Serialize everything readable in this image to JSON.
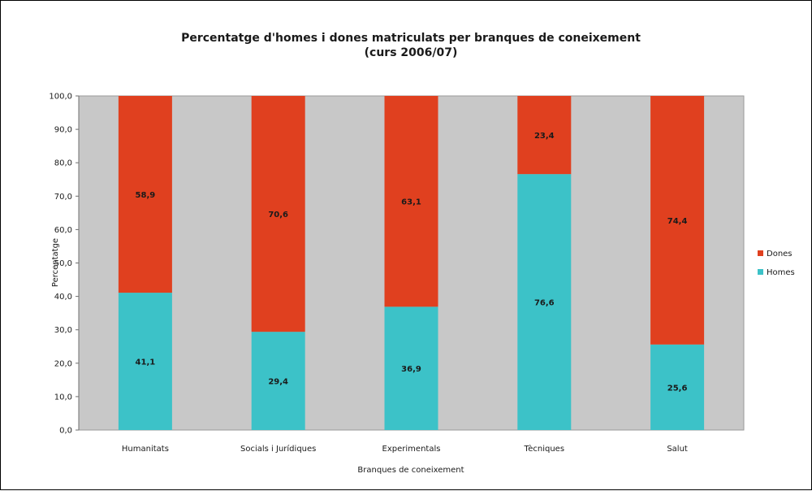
{
  "chart_data": {
    "type": "bar",
    "stacked": true,
    "title": "Percentatge d'homes i dones matriculats per branques de coneixement",
    "subtitle": "(curs 2006/07)",
    "xlabel": "Branques de coneixement",
    "ylabel": "Percentatge",
    "ylim": [
      0,
      100
    ],
    "yticks": [
      "0,0",
      "10,0",
      "20,0",
      "30,0",
      "40,0",
      "50,0",
      "60,0",
      "70,0",
      "80,0",
      "90,0",
      "100,0"
    ],
    "grid": false,
    "legend_position": "right",
    "categories": [
      "Humanitats",
      "Socials i Jurídiques",
      "Experimentals",
      "Tècniques",
      "Salut"
    ],
    "series": [
      {
        "name": "Homes",
        "color": "#3cc2c8",
        "values": [
          41.1,
          29.4,
          36.9,
          76.6,
          25.6
        ],
        "labels": [
          "41,1",
          "29,4",
          "36,9",
          "76,6",
          "25,6"
        ]
      },
      {
        "name": "Dones",
        "color": "#e0401f",
        "values": [
          58.9,
          70.6,
          63.1,
          23.4,
          74.4
        ],
        "labels": [
          "58,9",
          "70,6",
          "63,1",
          "23,4",
          "74,4"
        ]
      }
    ],
    "legend_order": [
      "Dones",
      "Homes"
    ],
    "plot_background": "#c8c8c8"
  }
}
